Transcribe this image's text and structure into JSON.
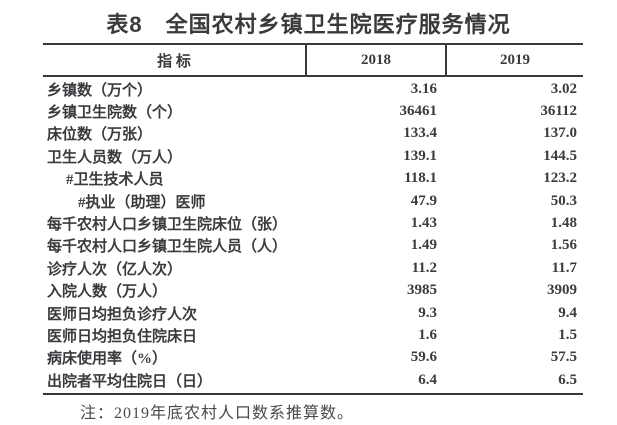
{
  "title": "表8　全国农村乡镇卫生院医疗服务情况",
  "table": {
    "columns": [
      "指 标",
      "2018",
      "2019"
    ],
    "rows": [
      {
        "label": "乡镇数（万个）",
        "indent": 0,
        "v2018": "3.16",
        "v2019": "3.02"
      },
      {
        "label": "乡镇卫生院数（个）",
        "indent": 0,
        "v2018": "36461",
        "v2019": "36112"
      },
      {
        "label": "床位数（万张）",
        "indent": 0,
        "v2018": "133.4",
        "v2019": "137.0"
      },
      {
        "label": "卫生人员数（万人）",
        "indent": 0,
        "v2018": "139.1",
        "v2019": "144.5"
      },
      {
        "label": "#卫生技术人员",
        "indent": 1,
        "v2018": "118.1",
        "v2019": "123.2"
      },
      {
        "label": "#执业（助理）医师",
        "indent": 2,
        "v2018": "47.9",
        "v2019": "50.3"
      },
      {
        "label": "每千农村人口乡镇卫生院床位（张）",
        "indent": 0,
        "v2018": "1.43",
        "v2019": "1.48"
      },
      {
        "label": "每千农村人口乡镇卫生院人员（人）",
        "indent": 0,
        "v2018": "1.49",
        "v2019": "1.56"
      },
      {
        "label": "诊疗人次（亿人次）",
        "indent": 0,
        "v2018": "11.2",
        "v2019": "11.7"
      },
      {
        "label": "入院人数（万人）",
        "indent": 0,
        "v2018": "3985",
        "v2019": "3909"
      },
      {
        "label": "医师日均担负诊疗人次",
        "indent": 0,
        "v2018": "9.3",
        "v2019": "9.4"
      },
      {
        "label": "医师日均担负住院床日",
        "indent": 0,
        "v2018": "1.6",
        "v2019": "1.5"
      },
      {
        "label": "病床使用率（%）",
        "indent": 0,
        "v2018": "59.6",
        "v2019": "57.5"
      },
      {
        "label": "出院者平均住院日（日）",
        "indent": 0,
        "v2018": "6.4",
        "v2019": "6.5"
      }
    ]
  },
  "note": "注：2019年底农村人口数系推算数。",
  "colors": {
    "text": "#3b3a3e",
    "line": "#39383a",
    "note": "#4a494b",
    "background": "#ffffff"
  }
}
